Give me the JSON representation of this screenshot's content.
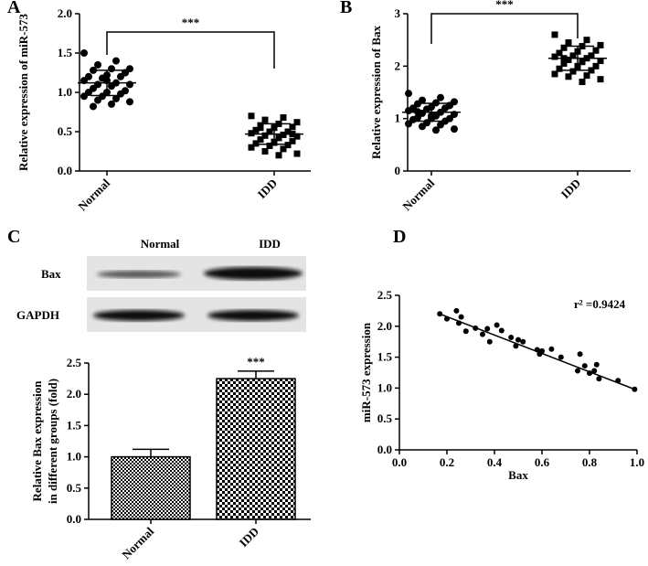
{
  "chart_data": [
    {
      "type": "dot",
      "panel": "A",
      "ylabel": "Relative expression of miR-573",
      "categories": [
        "Normal",
        "IDD"
      ],
      "groups": [
        {
          "marker": "circle",
          "mean": 1.12,
          "sd": 0.16,
          "values": [
            1.5,
            1.4,
            1.35,
            1.3,
            1.3,
            1.28,
            1.25,
            1.22,
            1.2,
            1.2,
            1.18,
            1.15,
            1.12,
            1.1,
            1.1,
            1.08,
            1.05,
            1.02,
            1.0,
            1.0,
            0.98,
            0.95,
            0.95,
            0.92,
            0.9,
            0.88,
            0.85,
            0.82,
            1.25,
            1.15
          ]
        },
        {
          "marker": "square",
          "mean": 0.47,
          "sd": 0.13,
          "values": [
            0.7,
            0.68,
            0.65,
            0.62,
            0.6,
            0.58,
            0.56,
            0.55,
            0.52,
            0.5,
            0.5,
            0.48,
            0.46,
            0.45,
            0.44,
            0.42,
            0.4,
            0.38,
            0.37,
            0.35,
            0.33,
            0.32,
            0.3,
            0.28,
            0.25,
            0.22,
            0.2,
            0.55,
            0.47,
            0.36
          ]
        }
      ],
      "annotation": "***",
      "ylim": [
        0,
        2
      ],
      "yticks": [
        {
          "value": 0,
          "label": "0.0"
        },
        0.5,
        {
          "value": 1,
          "label": "1.0"
        },
        1.5,
        {
          "value": 2,
          "label": "2.0"
        }
      ]
    },
    {
      "type": "dot",
      "panel": "B",
      "ylabel": "Relative  expression of Bax",
      "categories": [
        "Normal",
        "IDD"
      ],
      "groups": [
        {
          "marker": "circle",
          "mean": 1.12,
          "sd": 0.17,
          "values": [
            1.48,
            1.4,
            1.35,
            1.32,
            1.3,
            1.28,
            1.25,
            1.22,
            1.2,
            1.2,
            1.18,
            1.15,
            1.12,
            1.1,
            1.08,
            1.05,
            1.02,
            1.0,
            1.0,
            0.98,
            0.95,
            0.92,
            0.9,
            0.88,
            0.85,
            0.8,
            0.78,
            1.13,
            1.25,
            1.05
          ]
        },
        {
          "marker": "square",
          "mean": 2.15,
          "sd": 0.23,
          "values": [
            2.6,
            2.5,
            2.45,
            2.4,
            2.38,
            2.35,
            2.3,
            2.28,
            2.25,
            2.2,
            2.2,
            2.18,
            2.15,
            2.12,
            2.1,
            2.08,
            2.05,
            2.0,
            1.98,
            1.95,
            1.92,
            1.9,
            1.85,
            1.82,
            1.8,
            1.75,
            1.7,
            2.15,
            2.3,
            2.0
          ]
        }
      ],
      "annotation": "***",
      "ylim": [
        0,
        3
      ],
      "yticks": [
        0,
        1,
        2,
        3
      ]
    },
    {
      "type": "bar",
      "panel": "C",
      "blot": {
        "lanes": [
          "Normal",
          "IDD"
        ],
        "rows": [
          "Bax",
          "GAPDH"
        ]
      },
      "ylabel": [
        "Relative Bax expression",
        "in different groups (fold)"
      ],
      "categories": [
        "Normal",
        "IDD"
      ],
      "values": [
        1,
        2.25
      ],
      "errors": [
        0.12,
        0.12
      ],
      "annotation": "***",
      "ylim": [
        0,
        2.5
      ],
      "yticks": [
        {
          "value": 0,
          "label": "0.0"
        },
        0.5,
        {
          "value": 1,
          "label": "1.0"
        },
        1.5,
        {
          "value": 2,
          "label": "2.0"
        },
        2.5
      ]
    },
    {
      "type": "scatter",
      "panel": "D",
      "xlabel": "Bax",
      "ylabel": "miR-573 expression",
      "annotation": "r² =0.9424",
      "x": [
        0.17,
        0.2,
        0.24,
        0.26,
        0.25,
        0.28,
        0.32,
        0.35,
        0.37,
        0.38,
        0.41,
        0.43,
        0.47,
        0.49,
        0.5,
        0.52,
        0.58,
        0.59,
        0.6,
        0.64,
        0.68,
        0.75,
        0.76,
        0.78,
        0.8,
        0.82,
        0.83,
        0.84,
        0.92,
        0.99
      ],
      "values": [
        2.2,
        2.12,
        2.25,
        2.15,
        2.05,
        1.92,
        1.97,
        1.87,
        1.96,
        1.75,
        2.02,
        1.93,
        1.82,
        1.68,
        1.78,
        1.75,
        1.62,
        1.55,
        1.6,
        1.63,
        1.5,
        1.28,
        1.55,
        1.36,
        1.24,
        1.28,
        1.38,
        1.15,
        1.12,
        0.98
      ],
      "fit": {
        "x": [
          0.17,
          0.99
        ],
        "y": [
          2.2,
          0.98
        ]
      },
      "xlim": [
        0,
        1
      ],
      "xticks": [
        {
          "value": 0,
          "label": "0.0"
        },
        0.2,
        0.4,
        0.6,
        0.8,
        {
          "value": 1,
          "label": "1.0"
        }
      ],
      "ylim": [
        0,
        2.5
      ],
      "yticks": [
        {
          "value": 0,
          "label": "0.0"
        },
        0.5,
        {
          "value": 1,
          "label": "1.0"
        },
        1.5,
        {
          "value": 2,
          "label": "2.0"
        },
        2.5
      ]
    }
  ]
}
